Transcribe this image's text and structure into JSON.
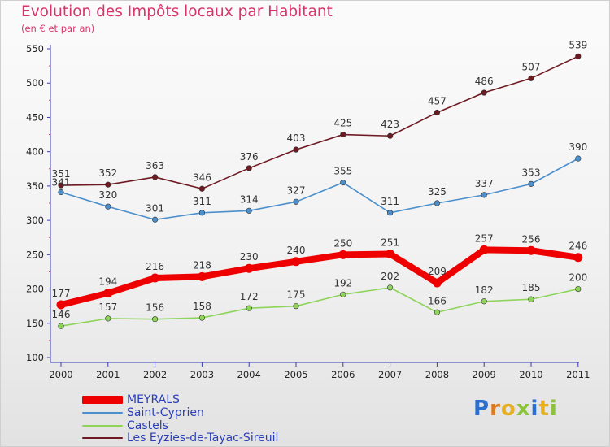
{
  "header": {
    "title": "Evolution des Impôts locaux par Habitant",
    "subtitle": "(en € et par an)"
  },
  "logo": {
    "text": "Proxiti",
    "letters": [
      "P",
      "r",
      "o",
      "x",
      "i",
      "t",
      "i"
    ],
    "colors": [
      "#2b6fce",
      "#e07a1f",
      "#e8b020",
      "#8bc33a",
      "#2b6fce",
      "#e8b020",
      "#8bc33a"
    ]
  },
  "chart_data": {
    "type": "line",
    "categories": [
      "2000",
      "2001",
      "2002",
      "2003",
      "2004",
      "2005",
      "2006",
      "2007",
      "2008",
      "2009",
      "2010",
      "2011"
    ],
    "ylim": [
      100,
      550
    ],
    "yticks": [
      "100",
      "150",
      "200",
      "250",
      "300",
      "350",
      "400",
      "450",
      "500",
      "550"
    ],
    "grid": false,
    "legend_position": "bottom-left",
    "series": [
      {
        "name": "Les Eyzies-de-Tayac-Sireuil",
        "color": "#6e1a22",
        "values": [
          351,
          352,
          363,
          346,
          376,
          403,
          425,
          423,
          457,
          486,
          507,
          539
        ]
      },
      {
        "name": "Saint-Cyprien",
        "color": "#4b8fcc",
        "values": [
          341,
          320,
          301,
          311,
          314,
          327,
          355,
          311,
          325,
          337,
          353,
          390
        ]
      },
      {
        "name": "Castels",
        "color": "#8fd45a",
        "values": [
          146,
          157,
          156,
          158,
          172,
          175,
          192,
          202,
          166,
          182,
          185,
          200
        ]
      },
      {
        "name": "MEYRALS",
        "color": "#ee0000",
        "values": [
          177,
          194,
          216,
          218,
          230,
          240,
          250,
          251,
          209,
          257,
          256,
          246
        ]
      }
    ]
  },
  "legend": [
    {
      "name": "MEYRALS",
      "color": "#ee0000"
    },
    {
      "name": "Saint-Cyprien",
      "color": "#4b8fcc"
    },
    {
      "name": "Castels",
      "color": "#8fd45a"
    },
    {
      "name": "Les Eyzies-de-Tayac-Sireuil",
      "color": "#6e1a22"
    }
  ]
}
